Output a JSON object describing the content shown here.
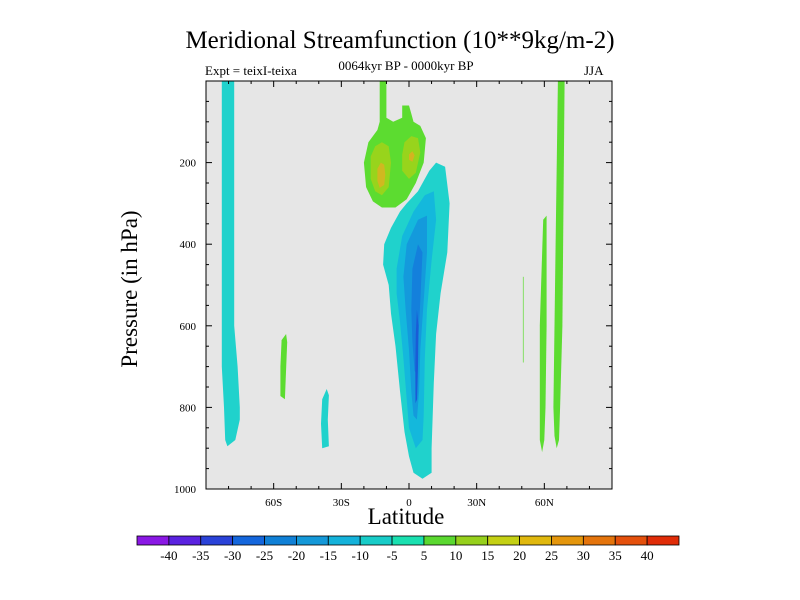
{
  "chart_data": {
    "type": "heatmap",
    "title": "Meridional Streamfunction (10**9kg/m-2)",
    "subtitle_left": "Expt = teixI-teixa",
    "subtitle_center": "0064kyr BP - 0000kyr BP",
    "subtitle_right": "JJA",
    "xlabel": "Latitude",
    "ylabel": "Pressure (in hPa)",
    "x_ticks": [
      {
        "value": -60,
        "label": "60S"
      },
      {
        "value": -30,
        "label": "30S"
      },
      {
        "value": 0,
        "label": "0"
      },
      {
        "value": 30,
        "label": "30N"
      },
      {
        "value": 60,
        "label": "60N"
      }
    ],
    "y_ticks": [
      {
        "value": 200,
        "label": "200"
      },
      {
        "value": 400,
        "label": "400"
      },
      {
        "value": 600,
        "label": "600"
      },
      {
        "value": 800,
        "label": "800"
      },
      {
        "value": 1000,
        "label": "1000"
      }
    ],
    "xlim": [
      -90,
      90
    ],
    "ylim": [
      1000,
      0
    ],
    "background_color": "#e6e6e6",
    "colorbar": {
      "labels": [
        "-40",
        "-35",
        "-30",
        "-25",
        "-20",
        "-15",
        "-10",
        "-5",
        "5",
        "10",
        "15",
        "20",
        "25",
        "30",
        "35",
        "40"
      ],
      "colors": [
        "#8a18e4",
        "#5a22e0",
        "#2a42d8",
        "#1466dc",
        "#1080d6",
        "#1498d8",
        "#14b2da",
        "#18ccc8",
        "#1ae0b0",
        "#5ad830",
        "#96d01c",
        "#c4d014",
        "#e0b80e",
        "#e4960c",
        "#e4740c",
        "#e4500c",
        "#e02c08"
      ]
    },
    "regions": [
      {
        "name": "neg-sh-high-lat-column",
        "value": -7.5,
        "color": "#20d2cc",
        "points": [
          [
            -83,
            0
          ],
          [
            -77.5,
            0
          ],
          [
            -77.5,
            600
          ],
          [
            -76,
            700
          ],
          [
            -75,
            800
          ],
          [
            -75,
            830
          ],
          [
            -77,
            880
          ],
          [
            -80.5,
            895
          ],
          [
            -81.5,
            880
          ],
          [
            -82,
            800
          ],
          [
            -83,
            700
          ],
          [
            -83,
            200
          ]
        ]
      },
      {
        "name": "pos-sh-mid-lat-blob",
        "value": 7.5,
        "color": "#5cdc30",
        "points": [
          [
            -56.5,
            635
          ],
          [
            -54.5,
            620
          ],
          [
            -54,
            640
          ],
          [
            -55,
            780
          ],
          [
            -57,
            772
          ],
          [
            -57,
            700
          ]
        ]
      },
      {
        "name": "neg-sh-subtropic-blob",
        "value": -7.5,
        "color": "#20d2cc",
        "points": [
          [
            -38.5,
            780
          ],
          [
            -36.5,
            755
          ],
          [
            -35.5,
            770
          ],
          [
            -36,
            830
          ],
          [
            -35.5,
            895
          ],
          [
            -38.5,
            900
          ],
          [
            -39,
            840
          ]
        ]
      },
      {
        "name": "pos-upper-tropical-cell",
        "value": 7.5,
        "color": "#5cdc30",
        "points": [
          [
            -13,
            0
          ],
          [
            -10,
            0
          ],
          [
            -10,
            90
          ],
          [
            -7,
            100
          ],
          [
            -3,
            90
          ],
          [
            -3,
            60
          ],
          [
            0,
            60
          ],
          [
            1,
            80
          ],
          [
            2,
            100
          ],
          [
            5,
            110
          ],
          [
            7.5,
            140
          ],
          [
            6.5,
            200
          ],
          [
            3,
            250
          ],
          [
            -1,
            290
          ],
          [
            -6,
            310
          ],
          [
            -12,
            310
          ],
          [
            -16,
            295
          ],
          [
            -19,
            260
          ],
          [
            -20,
            200
          ],
          [
            -18,
            150
          ],
          [
            -14,
            120
          ],
          [
            -13,
            100
          ]
        ]
      },
      {
        "name": "pos-upper-core-west",
        "value": 12.5,
        "color": "#98d41c",
        "points": [
          [
            -17,
            185
          ],
          [
            -15,
            160
          ],
          [
            -12,
            150
          ],
          [
            -9,
            160
          ],
          [
            -8,
            200
          ],
          [
            -9,
            260
          ],
          [
            -12,
            280
          ],
          [
            -15,
            270
          ],
          [
            -17,
            240
          ]
        ]
      },
      {
        "name": "pos-upper-core-east",
        "value": 12.5,
        "color": "#98d41c",
        "points": [
          [
            -2,
            150
          ],
          [
            1,
            135
          ],
          [
            4,
            140
          ],
          [
            5,
            175
          ],
          [
            3,
            225
          ],
          [
            0,
            240
          ],
          [
            -3,
            220
          ],
          [
            -3,
            180
          ]
        ]
      },
      {
        "name": "pos-upper-peak-west",
        "value": 17.5,
        "color": "#d0b820",
        "points": [
          [
            -14,
            215
          ],
          [
            -12.5,
            200
          ],
          [
            -11,
            205
          ],
          [
            -10.5,
            230
          ],
          [
            -11,
            255
          ],
          [
            -13,
            262
          ],
          [
            -14,
            245
          ]
        ]
      },
      {
        "name": "pos-upper-peak-east",
        "value": 17.5,
        "color": "#d4b420",
        "points": [
          [
            0,
            180
          ],
          [
            1.5,
            172
          ],
          [
            2.5,
            182
          ],
          [
            1.5,
            198
          ],
          [
            0,
            193
          ]
        ]
      },
      {
        "name": "neg-tropical-cell-outer",
        "value": -7.5,
        "color": "#20d2cc",
        "points": [
          [
            9,
            220
          ],
          [
            12,
            200
          ],
          [
            16,
            210
          ],
          [
            18,
            300
          ],
          [
            17,
            420
          ],
          [
            14,
            520
          ],
          [
            12,
            620
          ],
          [
            11,
            740
          ],
          [
            10.5,
            820
          ],
          [
            10,
            900
          ],
          [
            10,
            960
          ],
          [
            6,
            975
          ],
          [
            2,
            960
          ],
          [
            0,
            920
          ],
          [
            -2,
            860
          ],
          [
            -4,
            760
          ],
          [
            -6,
            650
          ],
          [
            -8,
            570
          ],
          [
            -9,
            500
          ],
          [
            -11.5,
            450
          ],
          [
            -11,
            400
          ],
          [
            -8,
            360
          ],
          [
            -4,
            320
          ],
          [
            -1,
            300
          ],
          [
            4,
            270
          ]
        ]
      },
      {
        "name": "neg-tropical-cell-mid",
        "value": -12.5,
        "color": "#14b8dc",
        "points": [
          [
            7,
            280
          ],
          [
            11,
            270
          ],
          [
            12,
            340
          ],
          [
            10,
            440
          ],
          [
            8,
            560
          ],
          [
            7,
            680
          ],
          [
            6.5,
            820
          ],
          [
            6,
            880
          ],
          [
            3,
            900
          ],
          [
            0,
            850
          ],
          [
            -1,
            780
          ],
          [
            -2.5,
            680
          ],
          [
            -4,
            590
          ],
          [
            -5.5,
            520
          ],
          [
            -5.5,
            460
          ],
          [
            -3,
            380
          ],
          [
            2,
            320
          ]
        ]
      },
      {
        "name": "neg-tropical-cell-inner",
        "value": -17.5,
        "color": "#149adc",
        "points": [
          [
            4,
            340
          ],
          [
            8,
            330
          ],
          [
            8,
            420
          ],
          [
            6.5,
            540
          ],
          [
            5,
            660
          ],
          [
            4.5,
            760
          ],
          [
            3.5,
            830
          ],
          [
            2,
            820
          ],
          [
            1,
            760
          ],
          [
            0,
            660
          ],
          [
            -1.5,
            560
          ],
          [
            -2.5,
            480
          ],
          [
            -1,
            400
          ]
        ]
      },
      {
        "name": "neg-tropical-cell-core",
        "value": -22.5,
        "color": "#1480dc",
        "points": [
          [
            4,
            400
          ],
          [
            6,
            420
          ],
          [
            5,
            540
          ],
          [
            4,
            650
          ],
          [
            3.5,
            720
          ],
          [
            2.5,
            710
          ],
          [
            1.5,
            640
          ],
          [
            1,
            560
          ],
          [
            1.5,
            460
          ]
        ]
      },
      {
        "name": "neg-tropical-cell-peak",
        "value": -27.5,
        "color": "#1a5cd6",
        "points": [
          [
            3.5,
            560
          ],
          [
            4.2,
            600
          ],
          [
            4,
            700
          ],
          [
            3.6,
            780
          ],
          [
            2.9,
            790
          ],
          [
            2.8,
            700
          ],
          [
            3,
            620
          ]
        ]
      },
      {
        "name": "pos-nh-thin-line",
        "value": 7.5,
        "color": "#5cdc30",
        "points": [
          [
            50.5,
            480
          ],
          [
            50.8,
            480
          ],
          [
            50.8,
            690
          ],
          [
            50.5,
            690
          ]
        ]
      },
      {
        "name": "pos-nh-mid-lat-column",
        "value": 7.5,
        "color": "#5cdc30",
        "points": [
          [
            59.5,
            340
          ],
          [
            61,
            330
          ],
          [
            61,
            600
          ],
          [
            60.5,
            800
          ],
          [
            60,
            880
          ],
          [
            59,
            910
          ],
          [
            58,
            880
          ],
          [
            58,
            600
          ]
        ]
      },
      {
        "name": "pos-nh-high-lat-column",
        "value": 7.5,
        "color": "#5cdc30",
        "points": [
          [
            66,
            0
          ],
          [
            69,
            0
          ],
          [
            68.5,
            300
          ],
          [
            68,
            600
          ],
          [
            67,
            800
          ],
          [
            66.5,
            880
          ],
          [
            65.5,
            900
          ],
          [
            64.5,
            870
          ],
          [
            64,
            800
          ],
          [
            65,
            400
          ]
        ]
      }
    ]
  }
}
